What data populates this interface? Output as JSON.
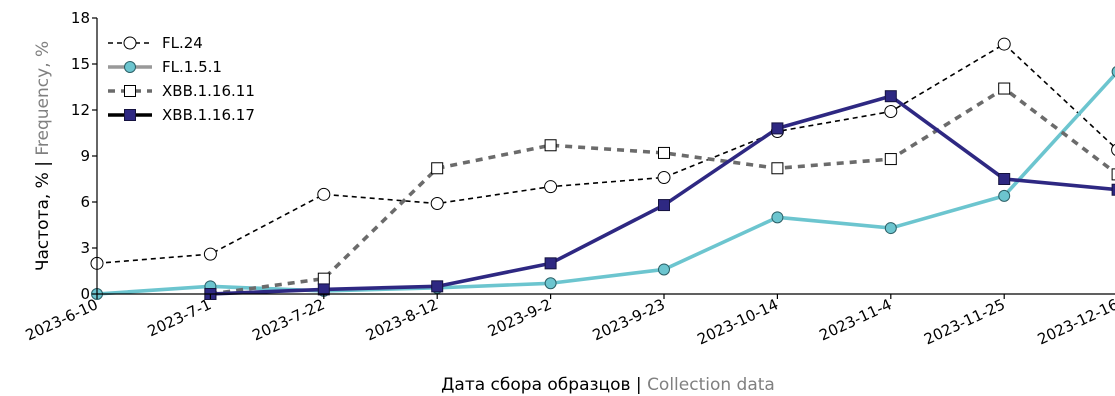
{
  "chart_data": {
    "type": "line",
    "categories": [
      "2023-6-10",
      "2023-7-1",
      "2023-7-22",
      "2023-8-12",
      "2023-9-2",
      "2023-9-23",
      "2023-10-14",
      "2023-11-4",
      "2023-11-25",
      "2023-12-16"
    ],
    "ylim": [
      0,
      18
    ],
    "yticks": [
      0,
      3,
      6,
      9,
      12,
      15,
      18
    ],
    "xlabel_main": "Дата сбора образцов",
    "xlabel_sep": " | ",
    "xlabel_en": "Collection data",
    "ylabel_main": "Частота, %",
    "ylabel_sep": " | ",
    "ylabel_en": "Frequency, %",
    "grid": false,
    "legend_position": "top-left",
    "series": [
      {
        "name": "FL.24",
        "color": "#000000",
        "dash": "dashed",
        "marker": "circle-open",
        "values": [
          2.0,
          2.6,
          6.5,
          5.9,
          7.0,
          7.6,
          10.6,
          11.9,
          16.3,
          9.4
        ]
      },
      {
        "name": "FL.1.5.1",
        "color": "#6cc5cf",
        "dash": "solid",
        "marker": "circle-filled",
        "values": [
          0.0,
          0.5,
          0.2,
          0.4,
          0.7,
          1.6,
          5.0,
          4.3,
          6.4,
          14.5
        ]
      },
      {
        "name": "XBB.1.16.11",
        "color": "#6b6b6b",
        "dash": "dashed-thick",
        "marker": "square-open",
        "values": [
          null,
          0.0,
          1.0,
          8.2,
          9.7,
          9.2,
          8.2,
          8.8,
          13.4,
          7.8
        ]
      },
      {
        "name": "XBB.1.16.17",
        "color": "#2e2882",
        "dash": "solid",
        "marker": "square-filled",
        "values": [
          null,
          0.0,
          0.3,
          0.5,
          2.0,
          5.8,
          10.8,
          12.9,
          7.5,
          6.8
        ]
      }
    ]
  }
}
